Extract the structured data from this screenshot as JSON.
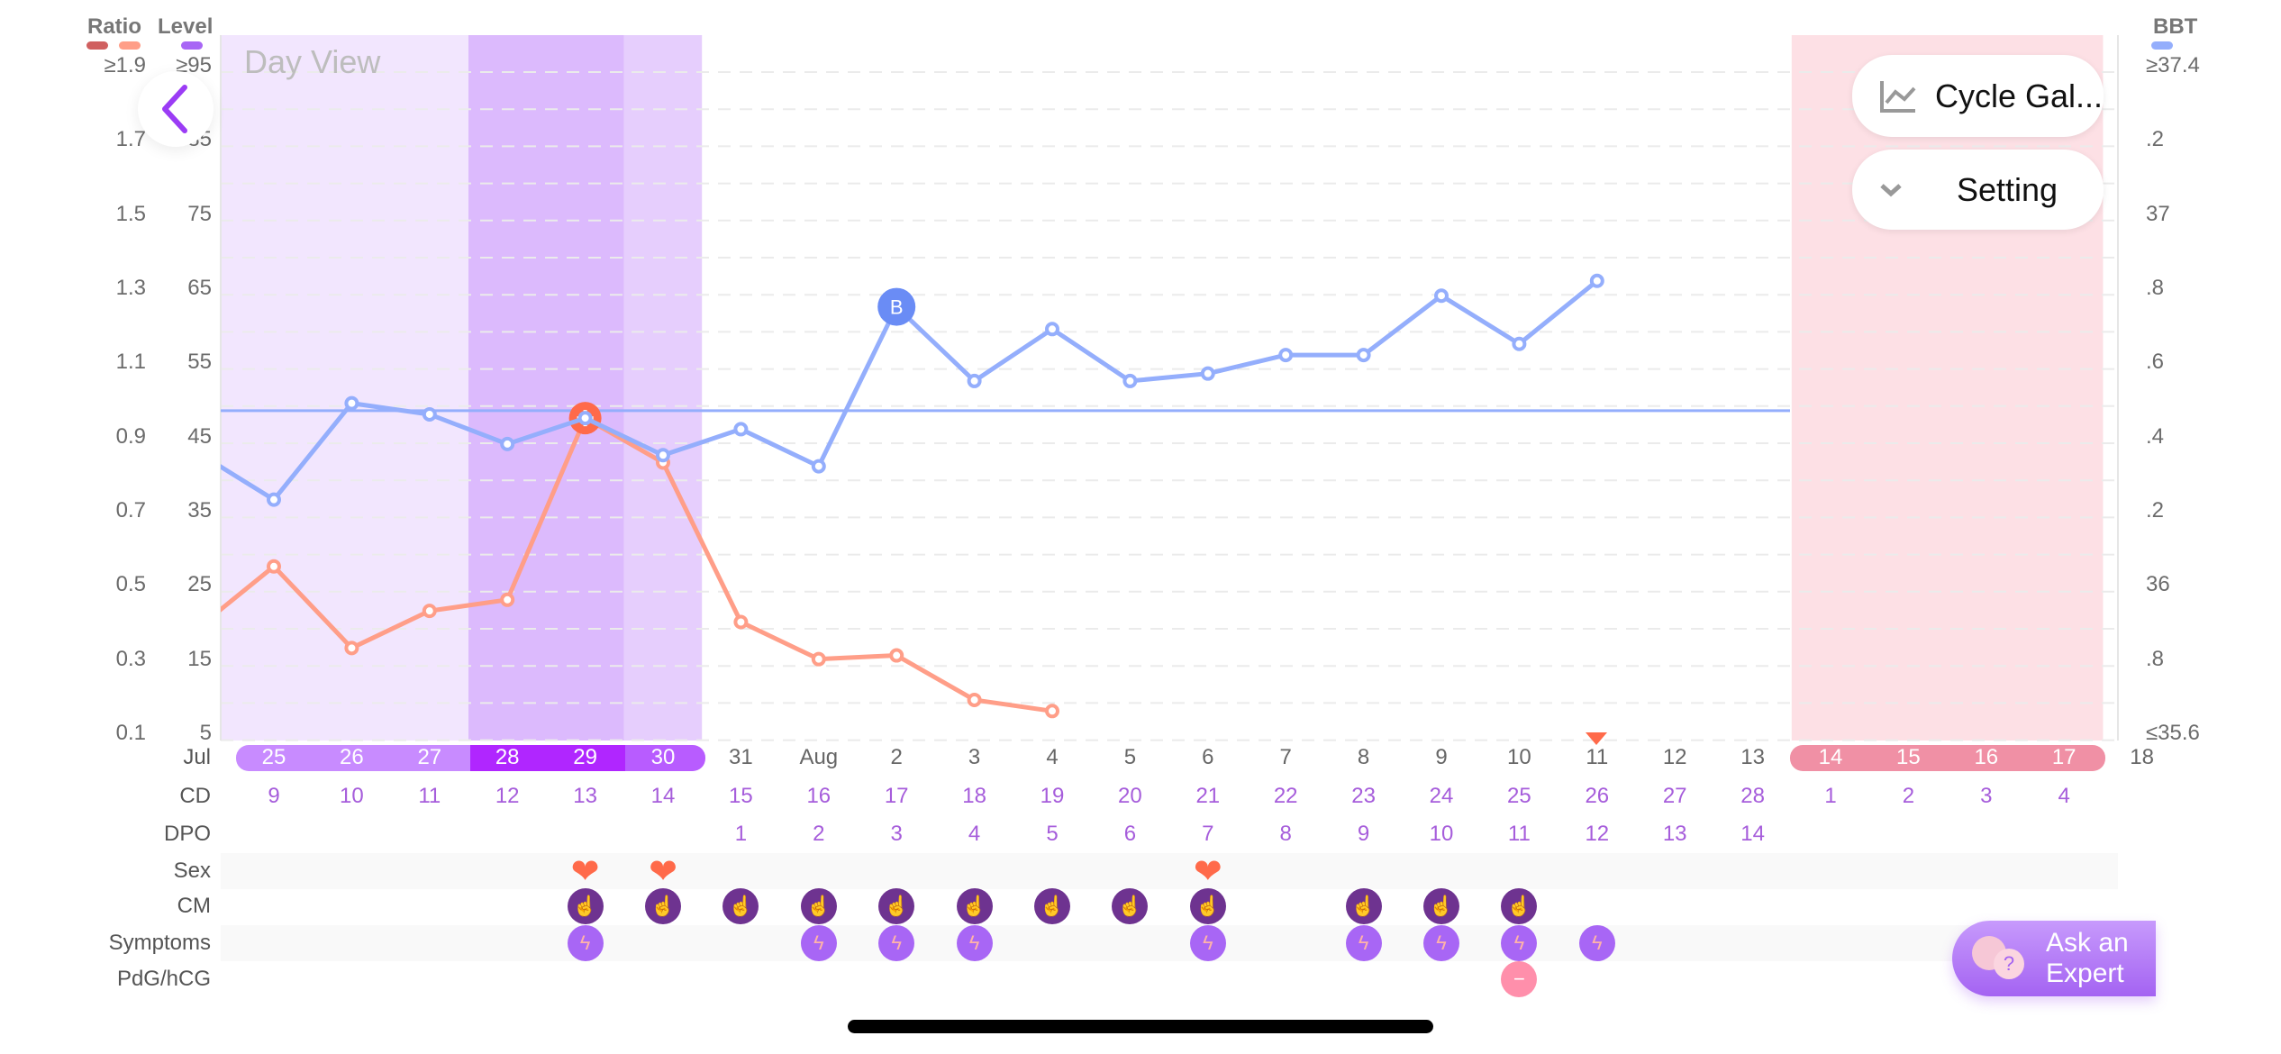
{
  "header": {
    "ratio_label": "Ratio",
    "level_label": "Level",
    "bbt_label": "BBT",
    "view_title": "Day View"
  },
  "colors": {
    "ratio_dark": "#d06060",
    "ratio": "#ff9e88",
    "level": "#a866f5",
    "bbt": "#94aefc",
    "fertile_light": "#f2e6fe",
    "fertile_dark": "#dcbafd",
    "fertile_mid": "#e6cefd",
    "period": "#fde0e5"
  },
  "ratio_ticks": [
    "≥1.9",
    "1.7",
    "1.5",
    "1.3",
    "1.1",
    "0.9",
    "0.7",
    "0.5",
    "0.3",
    "0.1"
  ],
  "level_ticks": [
    "≥95",
    "85",
    "75",
    "65",
    "55",
    "45",
    "35",
    "25",
    "15",
    "5"
  ],
  "bbt_ticks": [
    "≥37.4",
    ".2",
    "37",
    ".8",
    ".6",
    ".4",
    ".2",
    "36",
    ".8",
    "≤35.6"
  ],
  "buttons": {
    "cycle_gallery": "Cycle Gal...",
    "setting": "Setting",
    "ask_expert_line1": "Ask an",
    "ask_expert_line2": "Expert"
  },
  "rows": {
    "month": "Jul",
    "cd": "CD",
    "dpo": "DPO",
    "sex": "Sex",
    "cm": "CM",
    "symptoms": "Symptoms",
    "pdg": "PdG/hCG"
  },
  "dates": [
    "25",
    "26",
    "27",
    "28",
    "29",
    "30",
    "31",
    "Aug",
    "2",
    "3",
    "4",
    "5",
    "6",
    "7",
    "8",
    "9",
    "10",
    "11",
    "12",
    "13",
    "14",
    "15",
    "16",
    "17",
    "18"
  ],
  "cd": [
    "9",
    "10",
    "11",
    "12",
    "13",
    "14",
    "15",
    "16",
    "17",
    "18",
    "19",
    "20",
    "21",
    "22",
    "23",
    "24",
    "25",
    "26",
    "27",
    "28",
    "1",
    "2",
    "3",
    "4",
    ""
  ],
  "dpo": [
    "",
    "",
    "",
    "",
    "",
    "",
    "1",
    "2",
    "3",
    "4",
    "5",
    "6",
    "7",
    "8",
    "9",
    "10",
    "11",
    "12",
    "13",
    "14",
    "",
    "",
    "",
    "",
    ""
  ],
  "sex_days": [
    4,
    5,
    12
  ],
  "cm_days": [
    4,
    5,
    6,
    7,
    8,
    9,
    10,
    11,
    12,
    14,
    15,
    16
  ],
  "symptom_days": [
    4,
    7,
    8,
    9,
    12,
    14,
    15,
    16,
    17
  ],
  "pdg_days": [
    16
  ],
  "today_index": 17,
  "chart_data": {
    "type": "line",
    "title": "Day View",
    "x_index_labels": "dates",
    "left_axis": {
      "label": "Ratio",
      "range": [
        0.1,
        1.9
      ]
    },
    "level_axis": {
      "label": "Level",
      "range": [
        5,
        95
      ]
    },
    "right_axis": {
      "label": "BBT",
      "range": [
        35.6,
        37.4
      ]
    },
    "series": [
      {
        "name": "Ratio",
        "color": "#ff9e88",
        "points": [
          [
            -1,
            0.38
          ],
          [
            0,
            0.55
          ],
          [
            1,
            0.33
          ],
          [
            2,
            0.43
          ],
          [
            3,
            0.46
          ],
          [
            4,
            0.95
          ],
          [
            5,
            0.83
          ],
          [
            6,
            0.4
          ],
          [
            7,
            0.3
          ],
          [
            8,
            0.31
          ],
          [
            9,
            0.19
          ],
          [
            10,
            0.16
          ]
        ],
        "peak_marker_index": 4
      },
      {
        "name": "BBT",
        "color": "#94aefc",
        "points": [
          [
            -1,
            36.36
          ],
          [
            0,
            36.23
          ],
          [
            1,
            36.49
          ],
          [
            2,
            36.46
          ],
          [
            3,
            36.38
          ],
          [
            4,
            36.45
          ],
          [
            5,
            36.35
          ],
          [
            6,
            36.42
          ],
          [
            7,
            36.32
          ],
          [
            8,
            36.75
          ],
          [
            9,
            36.55
          ],
          [
            10,
            36.69
          ],
          [
            11,
            36.55
          ],
          [
            12,
            36.57
          ],
          [
            13,
            36.62
          ],
          [
            14,
            36.62
          ],
          [
            15,
            36.78
          ],
          [
            16,
            36.65
          ],
          [
            17,
            36.82
          ]
        ],
        "marker_index": 8,
        "marker_label": "B"
      }
    ],
    "coverline_bbt": 36.47,
    "bands": [
      {
        "from": 0,
        "to": 2,
        "kind": "fertile_light"
      },
      {
        "from": 3,
        "to": 4,
        "kind": "fertile_dark"
      },
      {
        "from": 5,
        "to": 5,
        "kind": "fertile_mid"
      },
      {
        "from": 20,
        "to": 23,
        "kind": "period"
      }
    ]
  }
}
